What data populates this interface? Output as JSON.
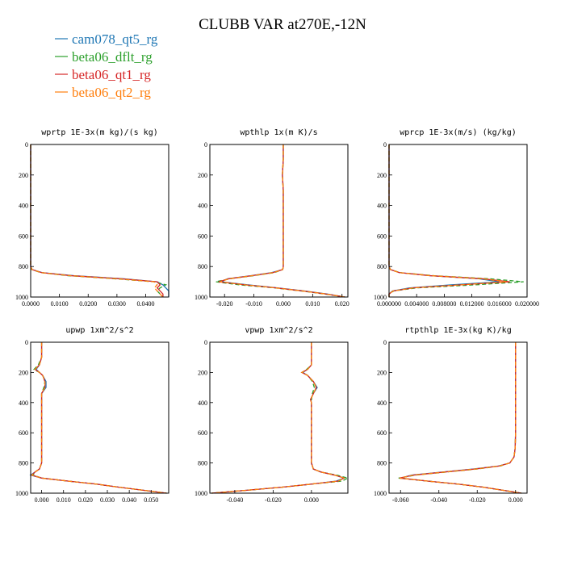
{
  "figure_title": "CLUBB VAR at270E,-12N",
  "legend": [
    {
      "label": "cam078_qt5_rg",
      "color": "#1f77b4",
      "dash": "solid"
    },
    {
      "label": "beta06_dflt_rg",
      "color": "#2ca02c",
      "dash": "dashed"
    },
    {
      "label": "beta06_qt1_rg",
      "color": "#d62728",
      "dash": "solid"
    },
    {
      "label": "beta06_qt2_rg",
      "color": "#ff7f0e",
      "dash": "dashed"
    }
  ],
  "chart_data": [
    {
      "type": "line",
      "title": "wprtp  1E-3x(m kg)/(s kg)",
      "xlim": [
        0,
        0.048
      ],
      "ylim": [
        1000,
        0
      ],
      "xticks": [
        0,
        0.01,
        0.02,
        0.03,
        0.04
      ],
      "xtick_labels": [
        "0.0000",
        "0.0100",
        "0.0200",
        "0.0300",
        "0.0400"
      ],
      "yticks": [
        0,
        200,
        400,
        600,
        800,
        1000
      ],
      "ytick_labels": [
        "0",
        "200",
        "400",
        "600",
        "800",
        "1000"
      ],
      "y": [
        0,
        100,
        200,
        300,
        400,
        500,
        600,
        700,
        800,
        820,
        840,
        860,
        880,
        900,
        920,
        940,
        960,
        980,
        1000
      ],
      "series": [
        {
          "values": [
            0,
            0,
            0,
            0,
            0,
            0,
            0,
            0,
            0,
            0.0005,
            0.004,
            0.015,
            0.032,
            0.044,
            0.046,
            0.047,
            0.048,
            0.048,
            0.048
          ]
        },
        {
          "values": [
            0,
            0,
            0,
            0,
            0,
            0,
            0,
            0,
            0,
            0.0004,
            0.0035,
            0.013,
            0.029,
            0.043,
            0.047,
            0.045,
            0.044,
            0.045,
            0.046
          ]
        },
        {
          "values": [
            0,
            0,
            0,
            0,
            0,
            0,
            0,
            0,
            0,
            0.0005,
            0.0038,
            0.014,
            0.031,
            0.044,
            0.045,
            0.044,
            0.045,
            0.046,
            0.046
          ]
        },
        {
          "values": [
            0,
            0,
            0,
            0,
            0,
            0,
            0,
            0,
            0,
            0.0005,
            0.0037,
            0.014,
            0.03,
            0.043,
            0.044,
            0.043,
            0.044,
            0.045,
            0.046
          ]
        }
      ]
    },
    {
      "type": "line",
      "title": "wpthlp  1x(m K)/s",
      "xlim": [
        -0.025,
        0.022
      ],
      "ylim": [
        1000,
        0
      ],
      "xticks": [
        -0.02,
        -0.01,
        0,
        0.01,
        0.02
      ],
      "xtick_labels": [
        "-0.020",
        "-0.010",
        "0.000",
        "0.010",
        "0.020"
      ],
      "yticks": [
        0,
        200,
        400,
        600,
        800,
        1000
      ],
      "ytick_labels": [
        "0",
        "200",
        "400",
        "600",
        "800",
        "1000"
      ],
      "y": [
        0,
        100,
        200,
        300,
        400,
        500,
        600,
        700,
        800,
        820,
        840,
        860,
        880,
        900,
        920,
        940,
        960,
        980,
        1000
      ],
      "series": [
        {
          "values": [
            0,
            0,
            -0.0003,
            0,
            0,
            0,
            0,
            0,
            0,
            -0.0002,
            -0.004,
            -0.011,
            -0.019,
            -0.021,
            -0.012,
            -0.002,
            0.007,
            0.015,
            0.021
          ]
        },
        {
          "values": [
            0,
            0,
            -0.0003,
            0,
            0,
            0,
            0,
            0,
            0,
            -0.0002,
            -0.003,
            -0.01,
            -0.018,
            -0.023,
            -0.015,
            -0.003,
            0.006,
            0.014,
            0.021
          ]
        },
        {
          "values": [
            0,
            0,
            -0.0003,
            0,
            0,
            0,
            0,
            0,
            0,
            -0.0002,
            -0.0035,
            -0.0105,
            -0.0185,
            -0.022,
            -0.013,
            -0.0025,
            0.0065,
            0.0145,
            0.021
          ]
        },
        {
          "values": [
            0,
            0,
            -0.0003,
            0,
            0,
            0,
            0,
            0,
            0,
            -0.0002,
            -0.0035,
            -0.0105,
            -0.0185,
            -0.0215,
            -0.013,
            -0.0025,
            0.0065,
            0.0145,
            0.021
          ]
        }
      ]
    },
    {
      "type": "line",
      "title": "wprcp  1E-3x(m/s) (kg/kg)",
      "xlim": [
        0,
        0.02
      ],
      "ylim": [
        1000,
        0
      ],
      "xticks": [
        0,
        0.004,
        0.008,
        0.012,
        0.016,
        0.02
      ],
      "xtick_labels": [
        "0.000000",
        "0.004000",
        "0.008000",
        "0.012000",
        "0.016000",
        "0.020000"
      ],
      "yticks": [
        0,
        200,
        400,
        600,
        800,
        1000
      ],
      "ytick_labels": [
        "0",
        "200",
        "400",
        "600",
        "800",
        "1000"
      ],
      "y": [
        0,
        100,
        200,
        300,
        400,
        500,
        600,
        700,
        800,
        820,
        840,
        860,
        880,
        900,
        920,
        940,
        960,
        980,
        1000
      ],
      "series": [
        {
          "values": [
            0,
            0,
            0,
            0,
            0,
            0,
            0,
            0,
            0,
            0.0002,
            0.0015,
            0.006,
            0.013,
            0.016,
            0.009,
            0.003,
            0.0005,
            0,
            0
          ]
        },
        {
          "values": [
            0,
            0,
            0,
            0,
            0,
            0,
            0,
            0,
            0,
            0.0002,
            0.0016,
            0.0065,
            0.0145,
            0.0195,
            0.0125,
            0.004,
            0.0007,
            0,
            0
          ]
        },
        {
          "values": [
            0,
            0,
            0,
            0,
            0,
            0,
            0,
            0,
            0,
            0.0002,
            0.0015,
            0.006,
            0.0135,
            0.0175,
            0.0105,
            0.0035,
            0.0006,
            0,
            0
          ]
        },
        {
          "values": [
            0,
            0,
            0,
            0,
            0,
            0,
            0,
            0,
            0,
            0.0002,
            0.0015,
            0.006,
            0.0135,
            0.017,
            0.0105,
            0.0035,
            0.0006,
            0,
            0
          ]
        }
      ]
    },
    {
      "type": "line",
      "title": "upwp  1xm^2/s^2",
      "xlim": [
        -0.005,
        0.058
      ],
      "ylim": [
        1000,
        0
      ],
      "xticks": [
        0,
        0.01,
        0.02,
        0.03,
        0.04,
        0.05
      ],
      "xtick_labels": [
        "0.000",
        "0.010",
        "0.020",
        "0.030",
        "0.040",
        "0.050"
      ],
      "yticks": [
        0,
        200,
        400,
        600,
        800,
        1000
      ],
      "ytick_labels": [
        "0",
        "200",
        "400",
        "600",
        "800",
        "1000"
      ],
      "y": [
        0,
        100,
        150,
        180,
        200,
        220,
        260,
        300,
        340,
        400,
        500,
        600,
        700,
        800,
        840,
        860,
        880,
        900,
        920,
        940,
        960,
        980,
        1000
      ],
      "series": [
        {
          "values": [
            0,
            0,
            -0.001,
            -0.0025,
            -0.001,
            0.0005,
            0.002,
            0.002,
            0,
            0,
            0,
            0,
            0,
            0,
            -0.001,
            -0.003,
            -0.005,
            0,
            0.012,
            0.025,
            0.035,
            0.046,
            0.057
          ]
        },
        {
          "values": [
            0,
            0,
            -0.0015,
            -0.0035,
            -0.001,
            0.0005,
            0.0015,
            0.001,
            0,
            0,
            0,
            0,
            0,
            0,
            -0.001,
            -0.003,
            -0.004,
            0,
            0.012,
            0.025,
            0.035,
            0.046,
            0.057
          ]
        },
        {
          "values": [
            0,
            0,
            -0.001,
            -0.003,
            -0.001,
            0.0005,
            0.0015,
            0.0015,
            0,
            0,
            0,
            0,
            0,
            0,
            -0.001,
            -0.003,
            -0.0045,
            0,
            0.012,
            0.025,
            0.035,
            0.046,
            0.057
          ]
        },
        {
          "values": [
            0,
            0,
            -0.001,
            -0.003,
            -0.001,
            0.0005,
            0.0015,
            0.0015,
            0,
            0,
            0,
            0,
            0,
            0,
            -0.001,
            -0.003,
            -0.0045,
            0,
            0.012,
            0.025,
            0.035,
            0.046,
            0.057
          ]
        }
      ]
    },
    {
      "type": "line",
      "title": "vpwp  1xm^2/s^2",
      "xlim": [
        -0.053,
        0.019
      ],
      "ylim": [
        1000,
        0
      ],
      "xticks": [
        -0.04,
        -0.02,
        0
      ],
      "xtick_labels": [
        "-0.040",
        "-0.020",
        "0.000"
      ],
      "yticks": [
        0,
        200,
        400,
        600,
        800,
        1000
      ],
      "ytick_labels": [
        "0",
        "200",
        "400",
        "600",
        "800",
        "1000"
      ],
      "y": [
        0,
        100,
        150,
        180,
        200,
        220,
        260,
        300,
        340,
        380,
        400,
        500,
        600,
        700,
        800,
        840,
        860,
        880,
        900,
        920,
        940,
        960,
        980,
        1000
      ],
      "series": [
        {
          "values": [
            0,
            0,
            0,
            -0.002,
            -0.0045,
            -0.002,
            0.001,
            0.003,
            0.001,
            -0.0005,
            0,
            0,
            0,
            0,
            0,
            0.001,
            0.005,
            0.012,
            0.017,
            0.013,
            0,
            -0.015,
            -0.033,
            -0.052
          ]
        },
        {
          "values": [
            0,
            0,
            0,
            -0.0025,
            -0.005,
            -0.002,
            0.0005,
            0.0015,
            0.0005,
            0,
            0,
            0,
            0,
            0,
            0,
            0.001,
            0.005,
            0.013,
            0.019,
            0.016,
            0,
            -0.015,
            -0.033,
            -0.052
          ]
        },
        {
          "values": [
            0,
            0,
            0,
            -0.002,
            -0.005,
            -0.002,
            0.001,
            0.0025,
            0.001,
            -0.0005,
            0,
            0,
            0,
            0,
            0,
            0.001,
            0.005,
            0.012,
            0.017,
            0.014,
            0,
            -0.015,
            -0.033,
            -0.052
          ]
        },
        {
          "values": [
            0,
            0,
            0,
            -0.002,
            -0.005,
            -0.002,
            0.001,
            0.0025,
            0.001,
            -0.0005,
            0,
            0,
            0,
            0,
            0,
            0.001,
            0.005,
            0.012,
            0.017,
            0.014,
            0,
            -0.015,
            -0.033,
            -0.052
          ]
        }
      ]
    },
    {
      "type": "line",
      "title": "rtpthlp  1E-3x(kg K)/kg",
      "xlim": [
        -0.066,
        0.006
      ],
      "ylim": [
        1000,
        0
      ],
      "xticks": [
        -0.06,
        -0.04,
        -0.02,
        0
      ],
      "xtick_labels": [
        "-0.060",
        "-0.040",
        "-0.020",
        "0.000"
      ],
      "yticks": [
        0,
        200,
        400,
        600,
        800,
        1000
      ],
      "ytick_labels": [
        "0",
        "200",
        "400",
        "600",
        "800",
        "1000"
      ],
      "y": [
        0,
        200,
        400,
        600,
        700,
        760,
        800,
        820,
        840,
        860,
        880,
        900,
        920,
        940,
        960,
        980,
        1000
      ],
      "series": [
        {
          "values": [
            0,
            0,
            0,
            0,
            -0.0002,
            -0.0008,
            -0.003,
            -0.009,
            -0.022,
            -0.038,
            -0.054,
            -0.06,
            -0.046,
            -0.03,
            -0.017,
            -0.007,
            0.003
          ]
        },
        {
          "values": [
            0,
            0,
            0,
            0,
            -0.0002,
            -0.0008,
            -0.003,
            -0.008,
            -0.02,
            -0.036,
            -0.052,
            -0.061,
            -0.046,
            -0.03,
            -0.017,
            -0.007,
            0.003
          ]
        },
        {
          "values": [
            0,
            0,
            0,
            0,
            -0.0002,
            -0.0008,
            -0.003,
            -0.0085,
            -0.021,
            -0.037,
            -0.053,
            -0.0605,
            -0.046,
            -0.03,
            -0.017,
            -0.007,
            0.003
          ]
        },
        {
          "values": [
            0,
            0,
            0,
            0,
            -0.0002,
            -0.0008,
            -0.003,
            -0.0085,
            -0.021,
            -0.037,
            -0.053,
            -0.0605,
            -0.046,
            -0.03,
            -0.017,
            -0.007,
            0.003
          ]
        }
      ]
    }
  ]
}
